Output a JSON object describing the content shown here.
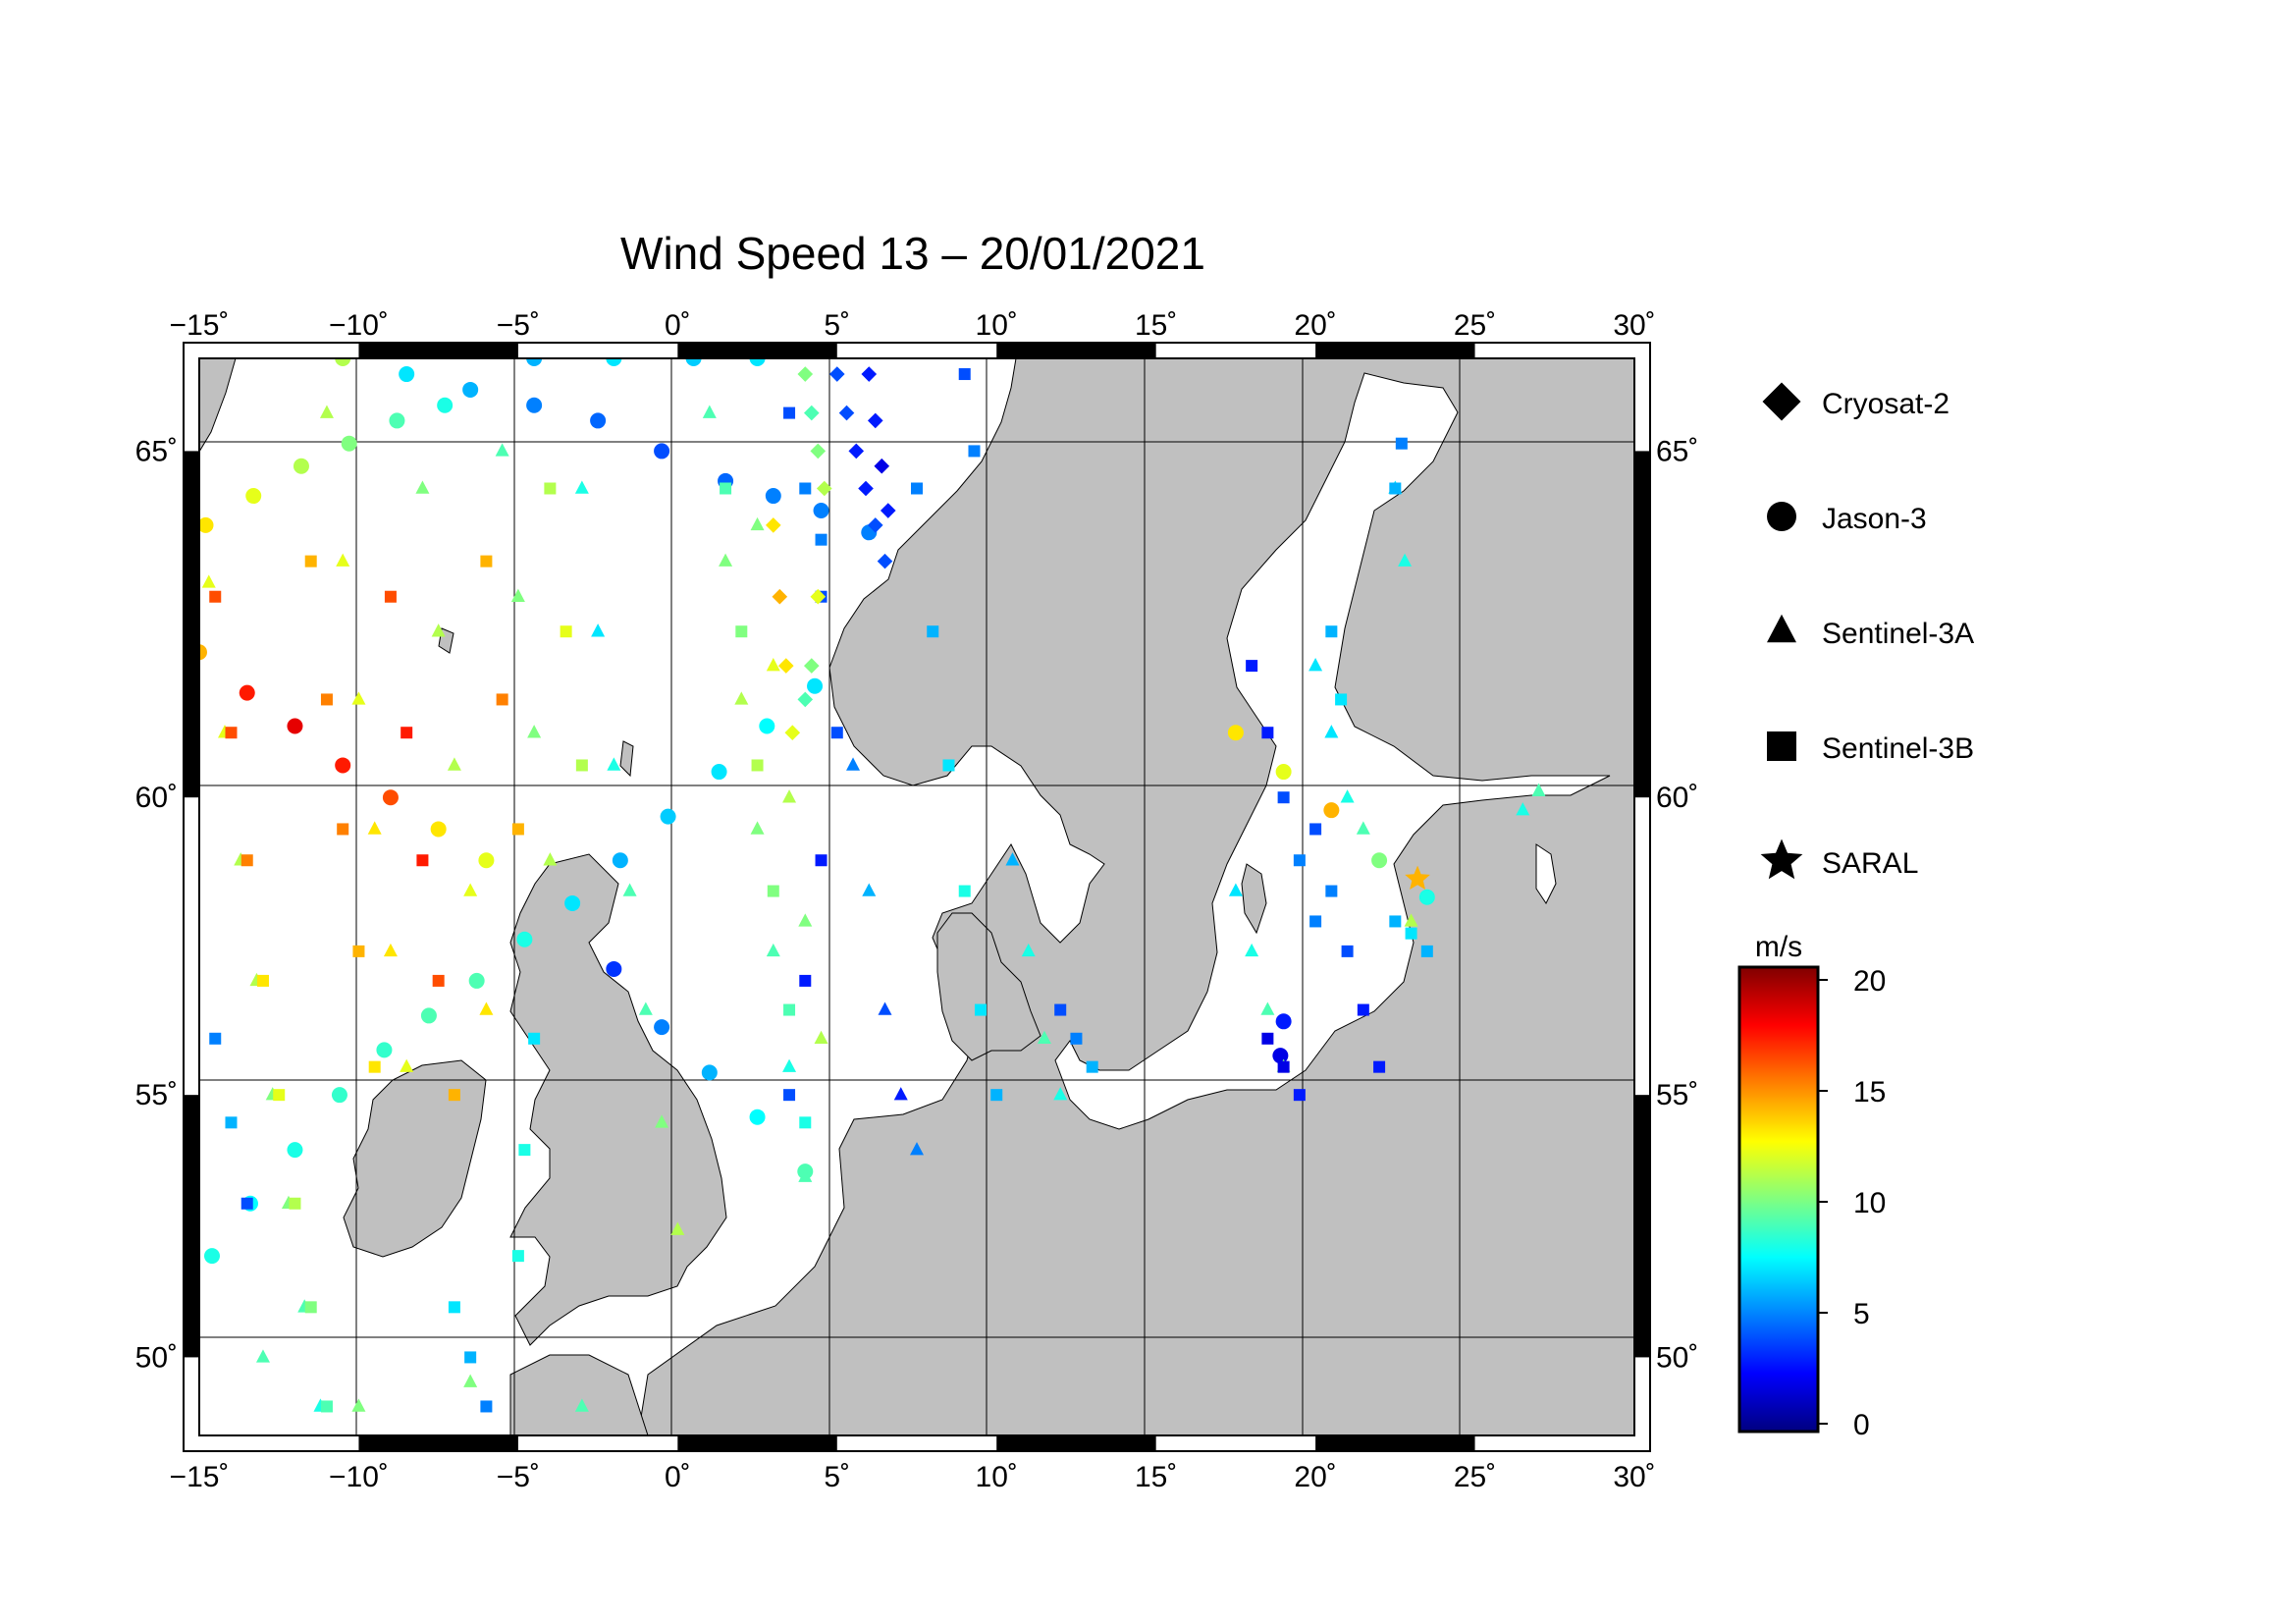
{
  "title": "Wind Speed 13 – 20/01/2021",
  "colors": {
    "land": "#c0c0c0",
    "sea": "#ffffff",
    "grid": "#000000",
    "colormap": [
      "#000080",
      "#0000ff",
      "#0080ff",
      "#00ffff",
      "#80ff80",
      "#ffff00",
      "#ff8000",
      "#ff0000",
      "#800000"
    ]
  },
  "axes": {
    "lon_range": [
      -15,
      30
    ],
    "lat_range": [
      48.4,
      66.2
    ],
    "lon_ticks": [
      "−15˚",
      "−10˚",
      "−5˚",
      "0˚",
      "5˚",
      "10˚",
      "15˚",
      "20˚",
      "25˚",
      "30˚"
    ],
    "lat_ticks": [
      "50˚",
      "55˚",
      "60˚",
      "65˚"
    ],
    "lon_tick_values": [
      -15,
      -10,
      -5,
      0,
      5,
      10,
      15,
      20,
      25,
      30
    ],
    "lat_tick_values": [
      50,
      55,
      60,
      65
    ]
  },
  "legend": [
    {
      "name": "Cryosat-2",
      "icon": "diamond-icon"
    },
    {
      "name": "Jason-3",
      "icon": "circle-icon"
    },
    {
      "name": "Sentinel-3A",
      "icon": "triangle-icon"
    },
    {
      "name": "Sentinel-3B",
      "icon": "square-icon"
    },
    {
      "name": "SARAL",
      "icon": "star-icon"
    }
  ],
  "colorbar": {
    "unit": "m/s",
    "range": [
      0,
      20
    ],
    "tick_labels": [
      "0",
      "5",
      "10",
      "15",
      "20"
    ],
    "tick_values": [
      0,
      5,
      10,
      15,
      20
    ]
  },
  "chart_data": {
    "type": "scatter",
    "title": "Wind Speed 13 – 20/01/2021",
    "xlim": [
      -15,
      30
    ],
    "ylim": [
      48.4,
      66.2
    ],
    "value_unit": "m/s",
    "series": [
      {
        "name": "Jason-3",
        "marker": "circle",
        "points": [
          [
            -14.6,
            52.0,
            8
          ],
          [
            -13.4,
            53.0,
            7.5
          ],
          [
            -12.0,
            54.0,
            8
          ],
          [
            -10.6,
            55.0,
            8.5
          ],
          [
            -9.2,
            55.8,
            8.5
          ],
          [
            -7.8,
            56.4,
            9
          ],
          [
            -6.3,
            57.0,
            9
          ],
          [
            -4.8,
            57.7,
            8
          ],
          [
            -3.3,
            58.3,
            7
          ],
          [
            -1.8,
            59.0,
            6
          ],
          [
            -0.3,
            59.7,
            6.5
          ],
          [
            1.3,
            60.4,
            7
          ],
          [
            2.8,
            61.1,
            7.5
          ],
          [
            4.3,
            61.7,
            7
          ],
          [
            -15.0,
            62.2,
            14
          ],
          [
            -13.5,
            61.6,
            17
          ],
          [
            -12.0,
            61.1,
            18
          ],
          [
            -10.5,
            60.5,
            17
          ],
          [
            -9.0,
            60.0,
            16
          ],
          [
            -7.5,
            59.5,
            13
          ],
          [
            -6.0,
            59.0,
            12
          ],
          [
            -14.8,
            64.0,
            13
          ],
          [
            -13.3,
            64.4,
            12
          ],
          [
            -11.8,
            64.8,
            11
          ],
          [
            -10.3,
            65.1,
            10
          ],
          [
            -8.8,
            65.4,
            9
          ],
          [
            -7.3,
            65.6,
            8
          ],
          [
            -10.5,
            66.2,
            11
          ],
          [
            -8.5,
            66.0,
            7
          ],
          [
            -6.5,
            65.8,
            6
          ],
          [
            -4.5,
            65.6,
            5
          ],
          [
            -2.5,
            65.4,
            4.5
          ],
          [
            -0.5,
            65.0,
            4
          ],
          [
            1.5,
            64.6,
            4.5
          ],
          [
            3.0,
            64.4,
            5
          ],
          [
            4.5,
            64.2,
            5
          ],
          [
            6.0,
            63.9,
            5
          ],
          [
            -4.5,
            66.2,
            6
          ],
          [
            -2.0,
            66.2,
            7
          ],
          [
            0.5,
            66.2,
            6.5
          ],
          [
            2.5,
            66.2,
            7
          ],
          [
            -2.0,
            57.2,
            3.5
          ],
          [
            -0.5,
            56.2,
            5
          ],
          [
            1.0,
            55.4,
            6
          ],
          [
            2.5,
            54.6,
            7.5
          ],
          [
            4.0,
            53.6,
            9
          ],
          [
            17.5,
            61.0,
            13
          ],
          [
            19.0,
            60.4,
            12
          ],
          [
            20.5,
            59.8,
            14
          ],
          [
            22.0,
            59.0,
            10
          ],
          [
            23.5,
            58.4,
            8
          ],
          [
            19.0,
            56.3,
            3
          ],
          [
            18.9,
            55.7,
            2
          ]
        ]
      },
      {
        "name": "Sentinel-3A",
        "marker": "triangle",
        "points": [
          [
            -14.7,
            63.2,
            12
          ],
          [
            -14.2,
            61.0,
            12
          ],
          [
            -13.7,
            59.0,
            11
          ],
          [
            -13.2,
            57.0,
            11
          ],
          [
            -12.7,
            55.0,
            10
          ],
          [
            -12.2,
            53.0,
            10
          ],
          [
            -11.7,
            51.0,
            9
          ],
          [
            -11.2,
            49.0,
            8
          ],
          [
            -11.0,
            65.5,
            11
          ],
          [
            -10.5,
            63.5,
            12
          ],
          [
            -10.0,
            61.5,
            12
          ],
          [
            -9.5,
            59.5,
            13
          ],
          [
            -9.0,
            57.5,
            13
          ],
          [
            -8.5,
            55.5,
            12
          ],
          [
            -8.0,
            64.5,
            10
          ],
          [
            -7.5,
            62.5,
            11
          ],
          [
            -7.0,
            60.5,
            11
          ],
          [
            -6.5,
            58.5,
            12
          ],
          [
            -6.0,
            56.5,
            13
          ],
          [
            -5.5,
            65.0,
            9
          ],
          [
            -5.0,
            63.0,
            10
          ],
          [
            -4.5,
            61.0,
            10
          ],
          [
            -4.0,
            59.0,
            11
          ],
          [
            -3.0,
            64.5,
            8
          ],
          [
            -2.5,
            62.5,
            7
          ],
          [
            -2.0,
            60.5,
            8
          ],
          [
            -1.5,
            58.5,
            9
          ],
          [
            -1.0,
            56.5,
            9
          ],
          [
            -0.5,
            54.5,
            10
          ],
          [
            0.0,
            52.5,
            11
          ],
          [
            1.0,
            65.5,
            9
          ],
          [
            1.5,
            63.5,
            10
          ],
          [
            2.0,
            61.5,
            11
          ],
          [
            2.5,
            59.5,
            10
          ],
          [
            3.0,
            57.5,
            9
          ],
          [
            3.5,
            55.5,
            8
          ],
          [
            4.0,
            53.5,
            9
          ],
          [
            2.5,
            64.0,
            10
          ],
          [
            3.0,
            62.0,
            12
          ],
          [
            3.5,
            60.0,
            11
          ],
          [
            4.0,
            58.0,
            10
          ],
          [
            4.5,
            56.0,
            11
          ],
          [
            5.5,
            60.5,
            5
          ],
          [
            6.0,
            58.5,
            6
          ],
          [
            6.5,
            56.5,
            4
          ],
          [
            7.0,
            55.0,
            3
          ],
          [
            7.5,
            54.0,
            5
          ],
          [
            10.5,
            59.0,
            6
          ],
          [
            11.0,
            57.5,
            8
          ],
          [
            11.5,
            56.0,
            9
          ],
          [
            12.0,
            55.0,
            8
          ],
          [
            17.5,
            58.5,
            7
          ],
          [
            18.0,
            57.5,
            8
          ],
          [
            18.5,
            56.5,
            9
          ],
          [
            19.0,
            55.5,
            10
          ],
          [
            20.0,
            62.0,
            7
          ],
          [
            20.5,
            61.0,
            7
          ],
          [
            21.0,
            60.0,
            8
          ],
          [
            21.5,
            59.5,
            9
          ],
          [
            22.5,
            64.5,
            7
          ],
          [
            22.8,
            63.5,
            8
          ],
          [
            23.0,
            58.0,
            11
          ],
          [
            26.5,
            59.8,
            8
          ],
          [
            27.0,
            60.1,
            9
          ],
          [
            -13.0,
            50.0,
            9
          ],
          [
            -10.0,
            49.0,
            10
          ],
          [
            -6.5,
            49.5,
            10
          ],
          [
            -3.0,
            49.0,
            9
          ]
        ]
      },
      {
        "name": "Sentinel-3B",
        "marker": "square",
        "points": [
          [
            -14.5,
            63.0,
            16
          ],
          [
            -14.0,
            61.0,
            16
          ],
          [
            -13.5,
            59.0,
            15
          ],
          [
            -13.0,
            57.0,
            13
          ],
          [
            -12.5,
            55.0,
            12
          ],
          [
            -12.0,
            53.0,
            11
          ],
          [
            -11.5,
            51.0,
            10
          ],
          [
            -11.0,
            49.0,
            9
          ],
          [
            -11.5,
            63.5,
            14
          ],
          [
            -11.0,
            61.5,
            15
          ],
          [
            -10.5,
            59.5,
            15
          ],
          [
            -10.0,
            57.5,
            14
          ],
          [
            -9.5,
            55.5,
            13
          ],
          [
            -9.0,
            63.0,
            16
          ],
          [
            -8.5,
            61.0,
            17
          ],
          [
            -8.0,
            59.0,
            17
          ],
          [
            -7.5,
            57.0,
            16
          ],
          [
            -7.0,
            55.0,
            14
          ],
          [
            -6.0,
            63.5,
            14
          ],
          [
            -5.5,
            61.5,
            15
          ],
          [
            -5.0,
            59.5,
            14
          ],
          [
            -4.0,
            64.5,
            11
          ],
          [
            -3.5,
            62.5,
            12
          ],
          [
            -3.0,
            60.5,
            11
          ],
          [
            -14.5,
            56.0,
            5
          ],
          [
            -14.0,
            54.5,
            6
          ],
          [
            -13.5,
            53.0,
            4
          ],
          [
            -7.0,
            51.0,
            7
          ],
          [
            -6.5,
            50.0,
            6
          ],
          [
            -6.0,
            49.0,
            5
          ],
          [
            -4.5,
            56.0,
            7
          ],
          [
            -4.8,
            54.0,
            8
          ],
          [
            -5.0,
            52.0,
            8
          ],
          [
            1.5,
            64.5,
            9
          ],
          [
            2.0,
            62.5,
            10
          ],
          [
            2.5,
            60.5,
            11
          ],
          [
            3.0,
            58.5,
            10
          ],
          [
            3.5,
            56.5,
            9
          ],
          [
            4.0,
            54.5,
            8
          ],
          [
            4.5,
            63.0,
            4
          ],
          [
            5.0,
            61.0,
            4
          ],
          [
            4.5,
            59.0,
            3
          ],
          [
            4.0,
            57.0,
            3
          ],
          [
            3.5,
            55.0,
            4
          ],
          [
            7.5,
            64.5,
            5
          ],
          [
            8.0,
            62.5,
            6
          ],
          [
            8.5,
            60.5,
            7
          ],
          [
            9.0,
            58.5,
            8
          ],
          [
            9.5,
            56.5,
            7
          ],
          [
            10.0,
            55.0,
            6
          ],
          [
            9.0,
            66.0,
            4
          ],
          [
            9.3,
            65.0,
            5
          ],
          [
            3.5,
            65.5,
            4
          ],
          [
            4.0,
            64.5,
            5
          ],
          [
            4.5,
            63.8,
            5
          ],
          [
            18.0,
            62.0,
            3
          ],
          [
            18.5,
            61.0,
            3
          ],
          [
            19.0,
            60.0,
            4
          ],
          [
            19.5,
            59.0,
            5
          ],
          [
            20.0,
            58.0,
            5
          ],
          [
            20.5,
            62.5,
            6
          ],
          [
            20.8,
            61.5,
            7
          ],
          [
            22.5,
            64.5,
            6
          ],
          [
            22.7,
            65.1,
            5
          ],
          [
            20.0,
            59.5,
            4
          ],
          [
            20.5,
            58.5,
            5
          ],
          [
            21.0,
            57.5,
            4
          ],
          [
            21.5,
            56.5,
            3
          ],
          [
            22.0,
            55.5,
            3
          ],
          [
            18.5,
            56.0,
            2
          ],
          [
            19.0,
            55.5,
            2
          ],
          [
            19.5,
            55.0,
            3
          ],
          [
            22.5,
            58.0,
            6
          ],
          [
            23.0,
            57.8,
            7
          ],
          [
            23.5,
            57.5,
            6
          ],
          [
            12.0,
            56.5,
            4
          ],
          [
            12.5,
            56.0,
            5
          ],
          [
            13.0,
            55.5,
            6
          ]
        ]
      },
      {
        "name": "Cryosat-2",
        "marker": "diamond",
        "points": [
          [
            5.0,
            66.0,
            4
          ],
          [
            5.3,
            65.5,
            4
          ],
          [
            5.6,
            65.0,
            3
          ],
          [
            5.9,
            64.5,
            3
          ],
          [
            6.2,
            64.0,
            4
          ],
          [
            6.5,
            63.5,
            4
          ],
          [
            6.0,
            66.0,
            3
          ],
          [
            6.2,
            65.4,
            3
          ],
          [
            6.4,
            64.8,
            2
          ],
          [
            6.6,
            64.2,
            3
          ],
          [
            4.0,
            66.0,
            10
          ],
          [
            4.2,
            65.5,
            9
          ],
          [
            4.4,
            65.0,
            10
          ],
          [
            4.6,
            64.5,
            11
          ],
          [
            4.4,
            63.0,
            12
          ],
          [
            4.2,
            62.0,
            10
          ],
          [
            4.0,
            61.5,
            9
          ],
          [
            3.0,
            64.0,
            13
          ],
          [
            3.2,
            63.0,
            14
          ],
          [
            3.4,
            62.0,
            13
          ],
          [
            3.6,
            61.0,
            12
          ]
        ]
      },
      {
        "name": "SARAL",
        "marker": "star",
        "points": [
          [
            23.2,
            58.7,
            14
          ]
        ]
      }
    ]
  }
}
